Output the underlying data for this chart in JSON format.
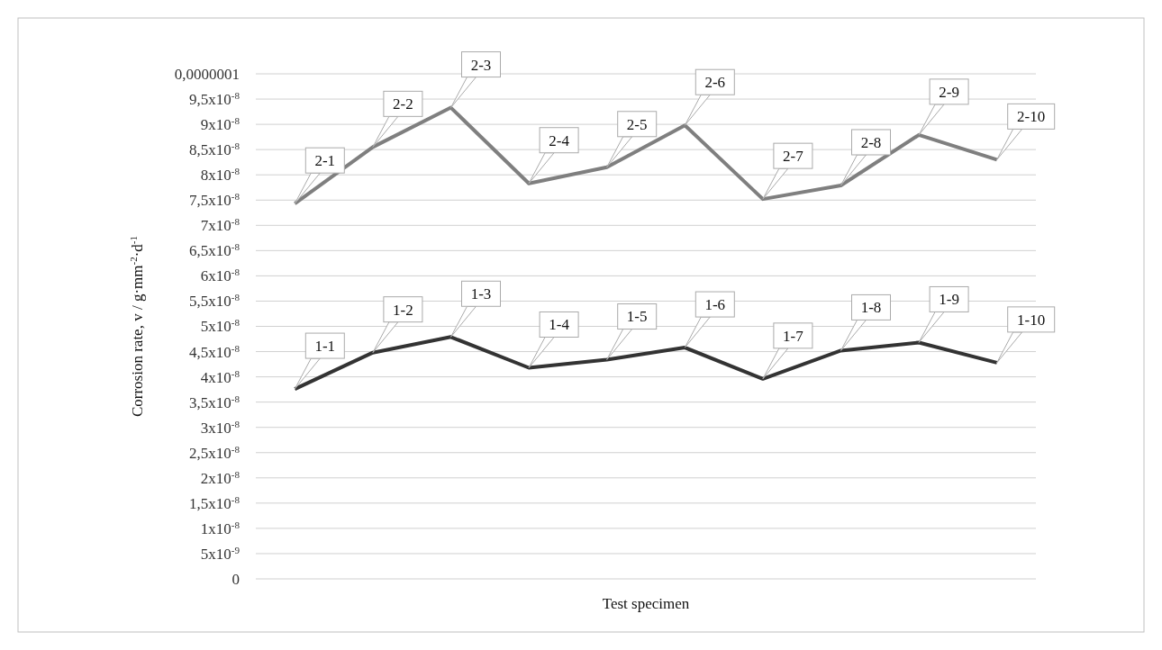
{
  "chart_data": {
    "type": "line",
    "xlabel": "Test specimen",
    "ylabel": "Corrosion rate, v / g·mm$^{-2}$·d$^{-1}$",
    "categories": [
      null,
      null,
      null,
      null,
      null,
      null,
      null,
      null,
      null,
      null
    ],
    "ylim": [
      0,
      1e-07
    ],
    "yticks": [
      0,
      {
        "value": 5e-09,
        "label": "5x10$^{-9}$"
      },
      {
        "value": 1e-08,
        "label": "1x10$^{-8}$"
      },
      {
        "value": 1.5e-08,
        "label": "1,5x10$^{-8}$"
      },
      {
        "value": 2e-08,
        "label": "2x10$^{-8}$"
      },
      {
        "value": 2.5e-08,
        "label": "2,5x10$^{-8}$"
      },
      {
        "value": 3e-08,
        "label": "3x10$^{-8}$"
      },
      {
        "value": 3.5e-08,
        "label": "3,5x10$^{-8}$"
      },
      {
        "value": 4e-08,
        "label": "4x10$^{-8}$"
      },
      {
        "value": 4.5e-08,
        "label": "4,5x10$^{-8}$"
      },
      {
        "value": 5e-08,
        "label": "5x10$^{-8}$"
      },
      {
        "value": 5.5e-08,
        "label": "5,5x10$^{-8}$"
      },
      {
        "value": 6e-08,
        "label": "6x10$^{-8}$"
      },
      {
        "value": 6.5e-08,
        "label": "6,5x10$^{-8}$"
      },
      {
        "value": 7e-08,
        "label": "7x10$^{-8}$"
      },
      {
        "value": 7.5e-08,
        "label": "7,5x10$^{-8}$"
      },
      {
        "value": 8e-08,
        "label": "8x10$^{-8}$"
      },
      {
        "value": 8.5e-08,
        "label": "8,5x10$^{-8}$"
      },
      {
        "value": 9e-08,
        "label": "9x10$^{-8}$"
      },
      {
        "value": 9.5e-08,
        "label": "9,5x10$^{-8}$"
      },
      {
        "value": 1e-07,
        "label": "0,0000001"
      }
    ],
    "grid": "y",
    "tick_labels": "y",
    "marker": "none",
    "line_style": "solid",
    "series": [
      {
        "color": "#7f7f7f",
        "values": [
          7.43e-08,
          8.55e-08,
          9.33e-08,
          7.83e-08,
          8.15e-08,
          8.98e-08,
          7.52e-08,
          7.79e-08,
          8.79e-08,
          8.3e-08
        ],
        "value_labels": [
          "2-1",
          "2-2",
          "2-3",
          "2-4",
          "2-5",
          "2-6",
          "2-7",
          "2-8",
          "2-9",
          "2-10"
        ]
      },
      {
        "color": "#333333",
        "values": [
          3.76e-08,
          4.48e-08,
          4.79e-08,
          4.18e-08,
          4.34e-08,
          4.58e-08,
          3.96e-08,
          4.52e-08,
          4.68e-08,
          4.28e-08
        ],
        "value_labels": [
          "1-1",
          "1-2",
          "1-3",
          "1-4",
          "1-5",
          "1-6",
          "1-7",
          "1-8",
          "1-9",
          "1-10"
        ]
      }
    ]
  }
}
